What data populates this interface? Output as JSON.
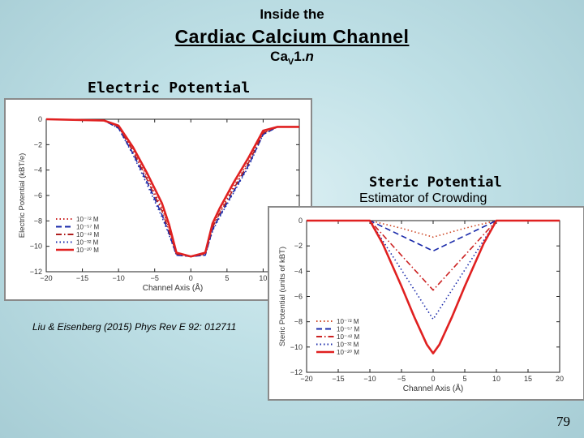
{
  "header": {
    "line1": "Inside the",
    "line2": "Cardiac Calcium Channel",
    "line3_main": "Ca",
    "line3_sub": "V",
    "line3_tail": "1.",
    "line3_ital": "n"
  },
  "labels": {
    "electric": "Electric Potential",
    "steric": "Steric Potential",
    "crowding": "Estimator of Crowding",
    "citation": "Liu & Eisenberg (2015) Phys Rev E 92: 012711",
    "page_number": "79"
  },
  "chart_data": [
    {
      "type": "line",
      "title": "",
      "xlabel": "Channel Axis (Å)",
      "ylabel": "Electric Potential (kBT/e)",
      "xlim": [
        -20,
        15
      ],
      "ylim": [
        -12,
        0
      ],
      "xticks": [
        "−20",
        "−15",
        "−10",
        "−5",
        "0",
        "5",
        "10",
        "15"
      ],
      "yticks": [
        "0",
        "−2",
        "−4",
        "−6",
        "−8",
        "−10",
        "−12"
      ],
      "legend_position": "bottom-left",
      "series": [
        {
          "name": "10⁻⁷² M",
          "color": "#cc2222",
          "style": "dotted",
          "x": [
            -20,
            -12,
            -10,
            -8,
            -6,
            -4,
            -3,
            -2,
            0,
            2,
            3,
            4,
            6,
            8,
            10,
            12,
            15
          ],
          "y": [
            0,
            -0.1,
            -0.6,
            -2.4,
            -4.6,
            -7.0,
            -8.6,
            -10.6,
            -10.8,
            -10.6,
            -8.4,
            -7.3,
            -5.2,
            -3.3,
            -1.0,
            -0.6,
            -0.6
          ]
        },
        {
          "name": "10⁻⁵⁷ M",
          "color": "#1a2aaa",
          "style": "dashed",
          "x": [
            -20,
            -12,
            -10,
            -8,
            -6,
            -4,
            -3,
            -2,
            0,
            2,
            3,
            4,
            6,
            8,
            10,
            12,
            15
          ],
          "y": [
            0,
            -0.1,
            -0.7,
            -2.7,
            -5.0,
            -7.5,
            -9.0,
            -10.7,
            -10.8,
            -10.7,
            -8.7,
            -7.6,
            -5.6,
            -3.6,
            -1.2,
            -0.6,
            -0.6
          ]
        },
        {
          "name": "10⁻⁴² M",
          "color": "#b02020",
          "style": "dashdot",
          "x": [
            -20,
            -12,
            -10,
            -8,
            -6,
            -4,
            -3,
            -2,
            0,
            2,
            3,
            4,
            6,
            8,
            10,
            12,
            15
          ],
          "y": [
            0,
            -0.1,
            -0.6,
            -2.5,
            -4.8,
            -7.2,
            -8.8,
            -10.6,
            -10.8,
            -10.6,
            -8.5,
            -7.4,
            -5.4,
            -3.4,
            -1.1,
            -0.6,
            -0.6
          ]
        },
        {
          "name": "10⁻³² M",
          "color": "#1a2aaa",
          "style": "dotted",
          "x": [
            -20,
            -12,
            -10,
            -8,
            -6,
            -4,
            -3,
            -2,
            0,
            2,
            3,
            4,
            6,
            8,
            10,
            12,
            15
          ],
          "y": [
            0,
            -0.1,
            -0.7,
            -2.8,
            -5.2,
            -7.7,
            -9.1,
            -10.7,
            -10.8,
            -10.7,
            -8.8,
            -7.7,
            -5.7,
            -3.7,
            -1.2,
            -0.6,
            -0.6
          ]
        },
        {
          "name": "10⁻²⁰ M",
          "color": "#e02020",
          "style": "solid",
          "x": [
            -20,
            -12,
            -10,
            -8,
            -6,
            -4,
            -3,
            -2,
            0,
            2,
            3,
            4,
            6,
            8,
            10,
            12,
            15
          ],
          "y": [
            0,
            -0.1,
            -0.5,
            -2.2,
            -4.3,
            -6.6,
            -8.3,
            -10.5,
            -10.8,
            -10.5,
            -8.2,
            -7.0,
            -4.9,
            -3.0,
            -0.9,
            -0.6,
            -0.6
          ]
        }
      ]
    },
    {
      "type": "line",
      "title": "",
      "xlabel": "Channel Axis (Å)",
      "ylabel": "Steric Potential (units of kBT)",
      "xlim": [
        -20,
        20
      ],
      "ylim": [
        -12,
        0
      ],
      "xticks": [
        "−20",
        "−15",
        "−10",
        "−5",
        "0",
        "5",
        "10",
        "15",
        "20"
      ],
      "yticks": [
        "0",
        "−2",
        "−4",
        "−6",
        "−8",
        "−10",
        "−12"
      ],
      "legend_position": "bottom-left",
      "series": [
        {
          "name": "10⁻⁷² M",
          "color": "#cc4422",
          "style": "dotted",
          "x": [
            -20,
            -10,
            -5,
            0,
            5,
            10,
            20
          ],
          "y": [
            0,
            0,
            -0.6,
            -1.3,
            -0.6,
            0,
            0
          ]
        },
        {
          "name": "10⁻⁵⁷ M",
          "color": "#1a2aaa",
          "style": "dashed",
          "x": [
            -20,
            -10,
            -5,
            0,
            5,
            10,
            20
          ],
          "y": [
            0,
            0,
            -1.2,
            -2.4,
            -1.2,
            0,
            0
          ]
        },
        {
          "name": "10⁻⁴² M",
          "color": "#cc2222",
          "style": "dashdot",
          "x": [
            -20,
            -10,
            -5,
            0,
            5,
            10,
            20
          ],
          "y": [
            0,
            0,
            -2.75,
            -5.5,
            -2.75,
            0,
            0
          ]
        },
        {
          "name": "10⁻³² M",
          "color": "#1a2aaa",
          "style": "dotted",
          "x": [
            -20,
            -10,
            -5,
            0,
            5,
            10,
            20
          ],
          "y": [
            0,
            0,
            -3.9,
            -7.8,
            -3.9,
            0,
            0
          ]
        },
        {
          "name": "10⁻²⁰ M",
          "color": "#e02020",
          "style": "solid",
          "x": [
            -20,
            -10,
            -8,
            -5,
            -3,
            -1,
            0,
            1,
            3,
            5,
            8,
            10,
            20
          ],
          "y": [
            0,
            0,
            -1.8,
            -5.2,
            -7.6,
            -9.8,
            -10.5,
            -9.8,
            -7.6,
            -5.2,
            -1.8,
            0,
            0
          ]
        }
      ]
    }
  ]
}
